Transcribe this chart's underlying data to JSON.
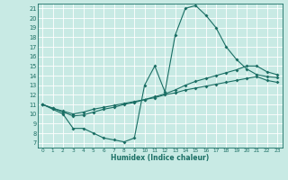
{
  "xlabel": "Humidex (Indice chaleur)",
  "bg_color": "#c8eae4",
  "line_color": "#1a6e64",
  "grid_color": "#ffffff",
  "xlim": [
    -0.5,
    23.5
  ],
  "ylim": [
    6.5,
    21.5
  ],
  "yticks": [
    7,
    8,
    9,
    10,
    11,
    12,
    13,
    14,
    15,
    16,
    17,
    18,
    19,
    20,
    21
  ],
  "xticks": [
    0,
    1,
    2,
    3,
    4,
    5,
    6,
    7,
    8,
    9,
    10,
    11,
    12,
    13,
    14,
    15,
    16,
    17,
    18,
    19,
    20,
    21,
    22,
    23
  ],
  "curve1_x": [
    0,
    1,
    2,
    3,
    4,
    5,
    6,
    7,
    8,
    9,
    10,
    11,
    12,
    13,
    14,
    15,
    16,
    17,
    18,
    19,
    20,
    21,
    22,
    23
  ],
  "curve1_y": [
    11.0,
    10.5,
    10.0,
    8.5,
    8.5,
    8.0,
    7.5,
    7.3,
    7.1,
    7.5,
    13.0,
    15.0,
    12.3,
    18.2,
    21.0,
    21.3,
    20.3,
    19.0,
    17.0,
    15.7,
    14.7,
    14.1,
    13.9,
    13.8
  ],
  "curve2_x": [
    0,
    1,
    2,
    3,
    4,
    5,
    6,
    7,
    8,
    9,
    10,
    11,
    12,
    13,
    14,
    15,
    16,
    17,
    18,
    19,
    20,
    21,
    22,
    23
  ],
  "curve2_y": [
    11.0,
    10.6,
    10.2,
    9.8,
    9.9,
    10.2,
    10.5,
    10.7,
    11.0,
    11.2,
    11.5,
    11.8,
    12.1,
    12.5,
    13.0,
    13.4,
    13.7,
    14.0,
    14.3,
    14.6,
    15.0,
    15.0,
    14.4,
    14.1
  ],
  "curve3_x": [
    0,
    1,
    2,
    3,
    4,
    5,
    6,
    7,
    8,
    9,
    10,
    11,
    12,
    13,
    14,
    15,
    16,
    17,
    18,
    19,
    20,
    21,
    22,
    23
  ],
  "curve3_y": [
    11.0,
    10.6,
    10.3,
    10.0,
    10.2,
    10.5,
    10.7,
    10.9,
    11.1,
    11.3,
    11.5,
    11.7,
    12.0,
    12.2,
    12.5,
    12.7,
    12.9,
    13.1,
    13.3,
    13.5,
    13.7,
    13.9,
    13.5,
    13.3
  ],
  "markersize": 2.0,
  "linewidth": 0.8
}
